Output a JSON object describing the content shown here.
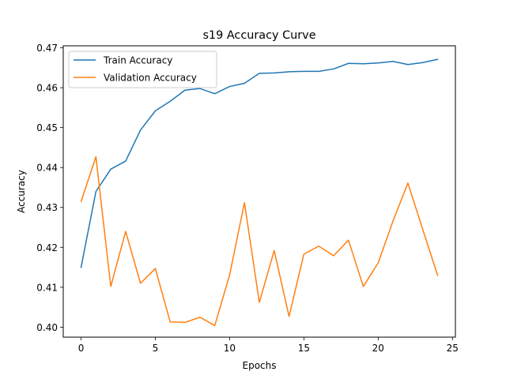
{
  "chart_data": {
    "type": "line",
    "title": "s19 Accuracy Curve",
    "xlabel": "Epochs",
    "ylabel": "Accuracy",
    "xlim": [
      -1.2,
      25.2
    ],
    "ylim": [
      0.3975,
      0.4705
    ],
    "xticks": [
      0,
      5,
      10,
      15,
      20,
      25
    ],
    "yticks": [
      0.4,
      0.41,
      0.42,
      0.43,
      0.44,
      0.45,
      0.46,
      0.47
    ],
    "ytick_labels": [
      "0.40",
      "0.41",
      "0.42",
      "0.43",
      "0.44",
      "0.45",
      "0.46",
      "0.47"
    ],
    "legend_position": "top-left",
    "x": [
      0,
      1,
      2,
      3,
      4,
      5,
      6,
      7,
      8,
      9,
      10,
      11,
      12,
      13,
      14,
      15,
      16,
      17,
      18,
      19,
      20,
      21,
      22,
      23,
      24
    ],
    "series": [
      {
        "name": "Train Accuracy",
        "color": "#1f77b4",
        "values": [
          0.415,
          0.434,
          0.4396,
          0.4416,
          0.4494,
          0.4542,
          0.4566,
          0.4594,
          0.4598,
          0.4585,
          0.4603,
          0.4611,
          0.4636,
          0.4637,
          0.464,
          0.4641,
          0.4641,
          0.4647,
          0.4661,
          0.466,
          0.4662,
          0.4666,
          0.4658,
          0.4663,
          0.4671
        ]
      },
      {
        "name": "Validation Accuracy",
        "color": "#ff7f0e",
        "values": [
          0.4315,
          0.4427,
          0.4102,
          0.424,
          0.411,
          0.4147,
          0.4013,
          0.4012,
          0.4025,
          0.4004,
          0.4131,
          0.4312,
          0.4062,
          0.4192,
          0.4027,
          0.4183,
          0.4203,
          0.4179,
          0.4218,
          0.4102,
          0.4161,
          0.4266,
          0.4361,
          0.4245,
          0.413
        ]
      }
    ]
  }
}
